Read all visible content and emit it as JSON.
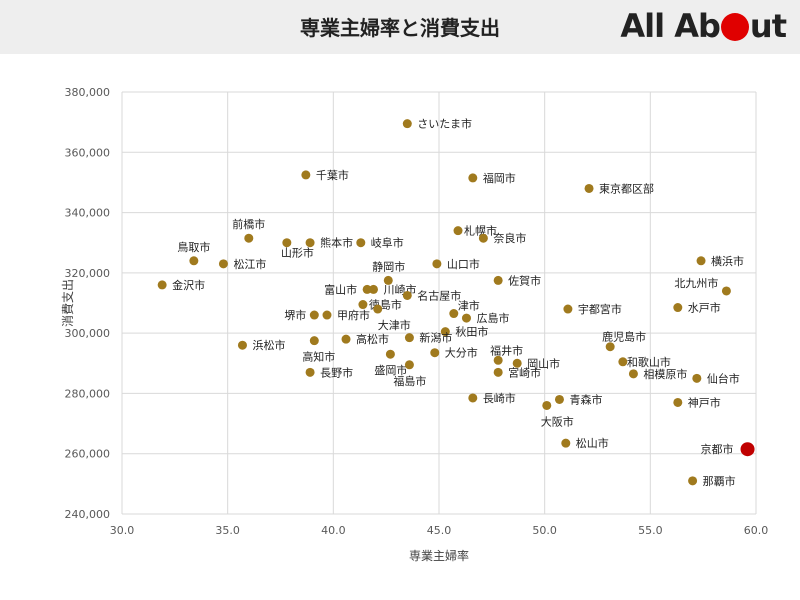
{
  "header": {
    "title": "専業主婦率と消費支出",
    "logo_text_left": "All Ab",
    "logo_text_right": "ut",
    "logo_alt": "All About"
  },
  "colors": {
    "point": "#a07a1e",
    "highlight": "#c00000",
    "logo_dot": "#e00000",
    "header_bg": "#eeeeee"
  },
  "chart_data": {
    "type": "scatter",
    "xlabel": "専業主婦率",
    "ylabel": "消費支出",
    "xlim": [
      30.0,
      60.0
    ],
    "ylim": [
      240000,
      380000
    ],
    "xticks": [
      "30.0",
      "35.0",
      "40.0",
      "45.0",
      "50.0",
      "55.0",
      "60.0"
    ],
    "yticks": [
      "240,000",
      "260,000",
      "280,000",
      "300,000",
      "320,000",
      "340,000",
      "360,000",
      "380,000"
    ],
    "grid": true,
    "points": [
      {
        "label": "さいたま市",
        "x": 43.5,
        "y": 369500
      },
      {
        "label": "千葉市",
        "x": 38.7,
        "y": 352500
      },
      {
        "label": "福岡市",
        "x": 46.6,
        "y": 351500
      },
      {
        "label": "東京都区部",
        "x": 52.1,
        "y": 348000
      },
      {
        "label": "札幌市",
        "x": 45.9,
        "y": 334000
      },
      {
        "label": "奈良市",
        "x": 47.1,
        "y": 331500
      },
      {
        "label": "前橋市",
        "x": 36.0,
        "y": 331500
      },
      {
        "label": "鳥取市",
        "x": 33.4,
        "y": 324000
      },
      {
        "label": "山形市",
        "x": 37.8,
        "y": 330000
      },
      {
        "label": "熊本市",
        "x": 38.9,
        "y": 330000
      },
      {
        "label": "岐阜市",
        "x": 41.3,
        "y": 330000
      },
      {
        "label": "松江市",
        "x": 34.8,
        "y": 323000
      },
      {
        "label": "山口市",
        "x": 44.9,
        "y": 323000
      },
      {
        "label": "横浜市",
        "x": 57.4,
        "y": 324000
      },
      {
        "label": "金沢市",
        "x": 31.9,
        "y": 316000
      },
      {
        "label": "静岡市",
        "x": 42.6,
        "y": 317500
      },
      {
        "label": "佐賀市",
        "x": 47.8,
        "y": 317500
      },
      {
        "label": "富山市",
        "x": 41.6,
        "y": 314500
      },
      {
        "label": "川崎市",
        "x": 41.9,
        "y": 314500
      },
      {
        "label": "北九州市",
        "x": 58.6,
        "y": 314000
      },
      {
        "label": "名古屋市",
        "x": 43.5,
        "y": 312500
      },
      {
        "label": "徳島市",
        "x": 41.4,
        "y": 309500
      },
      {
        "label": "宇都宮市",
        "x": 51.1,
        "y": 308000
      },
      {
        "label": "水戸市",
        "x": 56.3,
        "y": 308500
      },
      {
        "label": "堺市",
        "x": 39.1,
        "y": 306000
      },
      {
        "label": "甲府市",
        "x": 39.7,
        "y": 306000
      },
      {
        "label": "津市",
        "x": 45.7,
        "y": 306500
      },
      {
        "label": "広島市",
        "x": 46.3,
        "y": 305000
      },
      {
        "label": "大津市",
        "x": 42.1,
        "y": 308000
      },
      {
        "label": "秋田市",
        "x": 45.3,
        "y": 300500
      },
      {
        "label": "高松市",
        "x": 40.6,
        "y": 298000
      },
      {
        "label": "高知市",
        "x": 39.1,
        "y": 297500
      },
      {
        "label": "新潟市",
        "x": 43.6,
        "y": 298500
      },
      {
        "label": "浜松市",
        "x": 35.7,
        "y": 296000
      },
      {
        "label": "鹿児島市",
        "x": 53.1,
        "y": 295500
      },
      {
        "label": "大分市",
        "x": 44.8,
        "y": 293500
      },
      {
        "label": "盛岡市",
        "x": 42.7,
        "y": 293000
      },
      {
        "label": "福井市",
        "x": 47.8,
        "y": 291000
      },
      {
        "label": "岡山市",
        "x": 48.7,
        "y": 290000
      },
      {
        "label": "和歌山市",
        "x": 53.7,
        "y": 290500
      },
      {
        "label": "福島市",
        "x": 43.6,
        "y": 289500
      },
      {
        "label": "長野市",
        "x": 38.9,
        "y": 287000
      },
      {
        "label": "宮崎市",
        "x": 47.8,
        "y": 287000
      },
      {
        "label": "相模原市",
        "x": 54.2,
        "y": 286500
      },
      {
        "label": "仙台市",
        "x": 57.2,
        "y": 285000
      },
      {
        "label": "長崎市",
        "x": 46.6,
        "y": 278500
      },
      {
        "label": "青森市",
        "x": 50.7,
        "y": 278000
      },
      {
        "label": "大阪市",
        "x": 50.1,
        "y": 276000
      },
      {
        "label": "神戸市",
        "x": 56.3,
        "y": 277000
      },
      {
        "label": "松山市",
        "x": 51.0,
        "y": 263500
      },
      {
        "label": "京都市",
        "x": 59.6,
        "y": 261500,
        "highlight": true
      },
      {
        "label": "那覇市",
        "x": 57.0,
        "y": 251000
      }
    ]
  }
}
